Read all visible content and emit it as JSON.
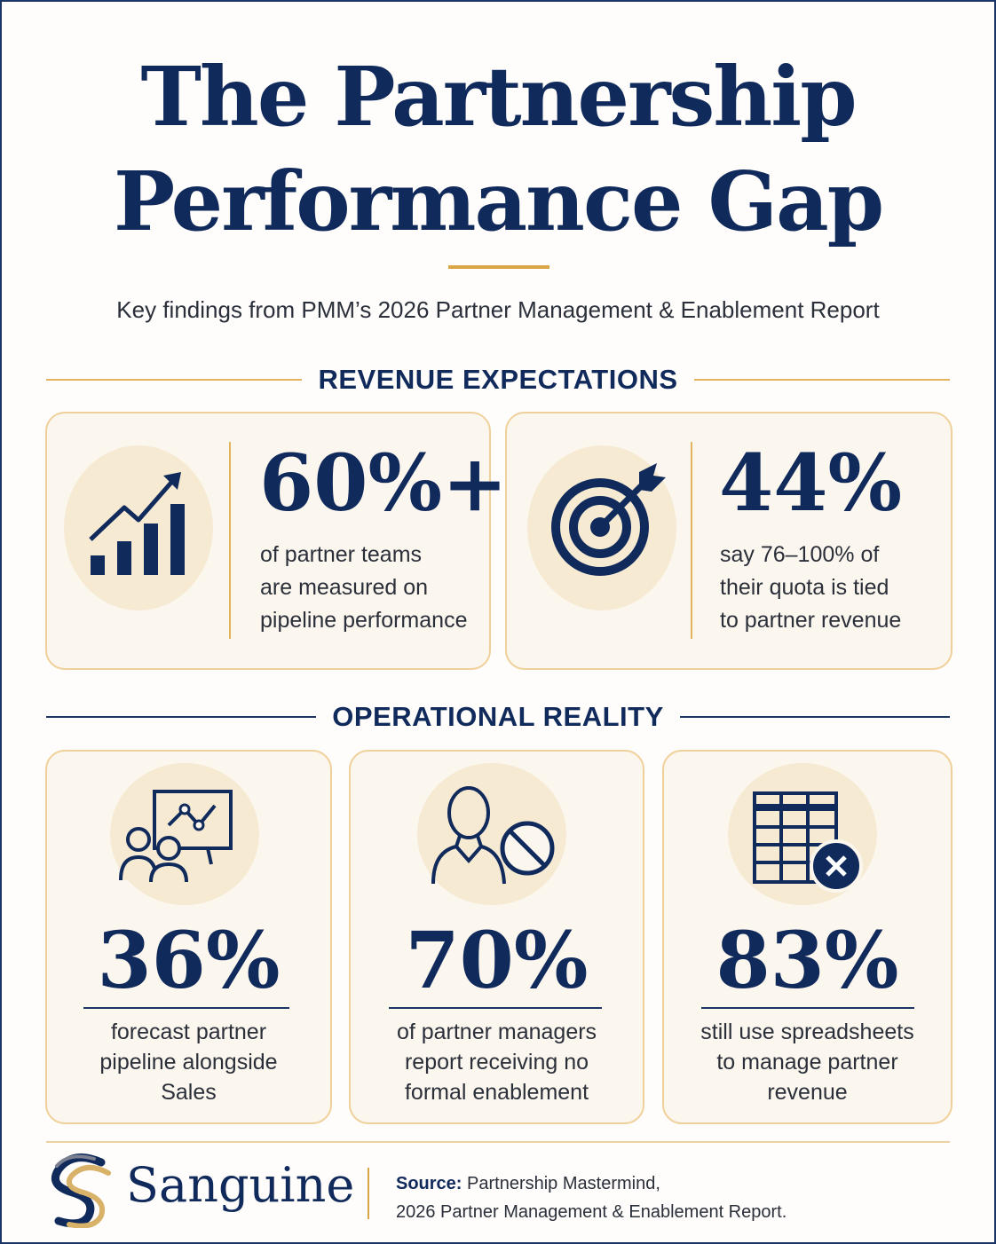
{
  "title_line1": "The Partnership",
  "title_line2": "Performance Gap",
  "subtitle": "Key findings from PMM’s 2026 Partner Management & Enablement Report",
  "sections": {
    "revenue": "REVENUE EXPECTATIONS",
    "operational": "OPERATIONAL REALITY"
  },
  "revenue_stats": [
    {
      "value": "60%+",
      "icon": "growth-chart-icon",
      "lines": [
        "of partner teams",
        "are measured on",
        "pipeline performance"
      ]
    },
    {
      "value": "44%",
      "icon": "target-icon",
      "lines": [
        "say 76–100% of",
        "their quota is tied",
        "to partner revenue"
      ]
    }
  ],
  "operational_stats": [
    {
      "value": "36%",
      "icon": "presentation-team-icon",
      "lines": [
        "forecast partner",
        "pipeline alongside",
        "Sales"
      ]
    },
    {
      "value": "70%",
      "icon": "person-blocked-icon",
      "lines": [
        "of partner managers",
        "report receiving no",
        "formal enablement"
      ]
    },
    {
      "value": "83%",
      "icon": "spreadsheet-error-icon",
      "lines": [
        "still use spreadsheets",
        "to manage partner",
        "revenue"
      ]
    }
  ],
  "footer": {
    "brand": "Sanguine",
    "source_label": "Source:",
    "source_line1": "Partnership Mastermind,",
    "source_line2": "2026 Partner Management & Enablement Report."
  },
  "colors": {
    "navy": "#112a5c",
    "gold": "#d9a545",
    "card_bg": "#fbf6ee"
  }
}
